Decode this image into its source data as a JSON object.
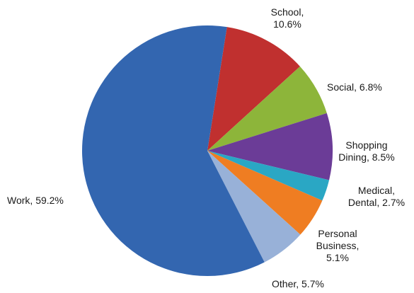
{
  "chart_data": {
    "type": "pie",
    "slices": [
      {
        "label_lines": [
          "School,",
          "10.6%"
        ],
        "category": "School",
        "value": 10.6,
        "color": "#C0302F"
      },
      {
        "label_lines": [
          "Social, 6.8%"
        ],
        "category": "Social",
        "value": 6.8,
        "color": "#8DB53A"
      },
      {
        "label_lines": [
          "Shopping",
          "Dining, 8.5%"
        ],
        "category": "Shopping Dining",
        "value": 8.5,
        "color": "#6B3C97"
      },
      {
        "label_lines": [
          "Medical,",
          "Dental, 2.7%"
        ],
        "category": "Medical, Dental",
        "value": 2.7,
        "color": "#2AA7C4"
      },
      {
        "label_lines": [
          "Personal",
          "Business,",
          "5.1%"
        ],
        "category": "Personal Business",
        "value": 5.1,
        "color": "#EF7D22"
      },
      {
        "label_lines": [
          "Other, 5.7%"
        ],
        "category": "Other",
        "value": 5.7,
        "color": "#98B1D8"
      },
      {
        "label_lines": [
          "Work, 59.2%"
        ],
        "category": "Work",
        "value": 59.2,
        "color": "#3366B0"
      }
    ]
  }
}
